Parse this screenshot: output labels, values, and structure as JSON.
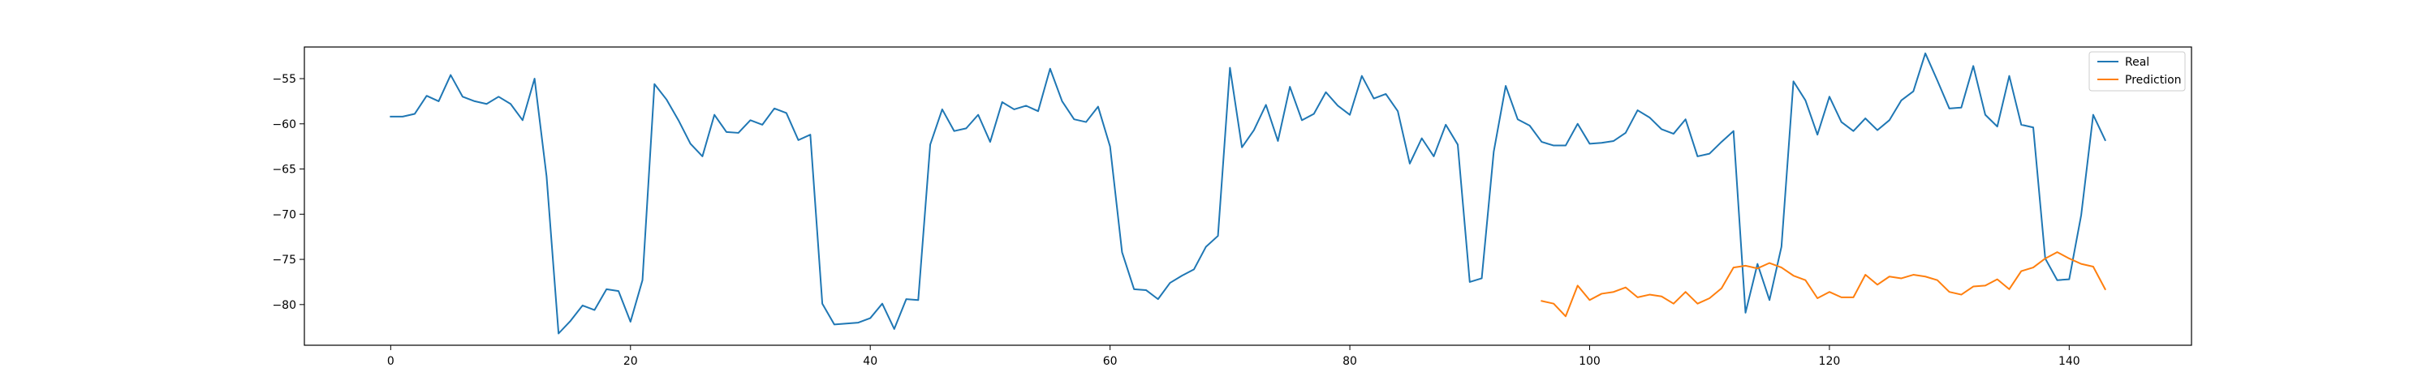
{
  "chart_data": {
    "type": "line",
    "title": "",
    "xlabel": "",
    "ylabel": "",
    "xlim": [
      -7.2,
      150.2
    ],
    "ylim": [
      -84.5,
      -51.5
    ],
    "xticks": [
      0,
      20,
      40,
      60,
      80,
      100,
      120,
      140
    ],
    "yticks": [
      -55,
      -60,
      -65,
      -70,
      -75,
      -80
    ],
    "grid": false,
    "legend_position": "top-right",
    "series": [
      {
        "name": "Real",
        "color": "#1f77b4",
        "x_start": 0,
        "values": [
          -59.2,
          -59.2,
          -58.9,
          -56.9,
          -57.5,
          -54.6,
          -57.0,
          -57.5,
          -57.8,
          -57.0,
          -57.8,
          -59.6,
          -55.0,
          -65.8,
          -83.2,
          -81.8,
          -80.1,
          -80.6,
          -78.3,
          -78.5,
          -81.9,
          -77.3,
          -55.6,
          -57.3,
          -59.6,
          -62.2,
          -63.6,
          -59.0,
          -60.9,
          -61.0,
          -59.6,
          -60.1,
          -58.3,
          -58.8,
          -61.8,
          -61.2,
          -79.9,
          -82.2,
          -82.1,
          -82.0,
          -81.5,
          -79.9,
          -82.7,
          -79.4,
          -79.5,
          -62.3,
          -58.4,
          -60.8,
          -60.5,
          -59.0,
          -62.0,
          -57.6,
          -58.4,
          -58.0,
          -58.6,
          -53.9,
          -57.5,
          -59.5,
          -59.8,
          -58.1,
          -62.5,
          -74.2,
          -78.3,
          -78.4,
          -79.4,
          -77.6,
          -76.8,
          -76.1,
          -73.6,
          -72.4,
          -53.8,
          -62.6,
          -60.7,
          -57.9,
          -61.9,
          -55.9,
          -59.6,
          -58.9,
          -56.5,
          -58.0,
          -59.0,
          -54.7,
          -57.2,
          -56.7,
          -58.6,
          -64.4,
          -61.6,
          -63.6,
          -60.1,
          -62.3,
          -77.5,
          -77.1,
          -63.1,
          -55.8,
          -59.5,
          -60.2,
          -62.0,
          -62.4,
          -62.4,
          -60.0,
          -62.2,
          -62.1,
          -61.9,
          -61.0,
          -58.5,
          -59.3,
          -60.6,
          -61.1,
          -59.5,
          -63.6,
          -63.3,
          -62.0,
          -60.8,
          -80.9,
          -75.5,
          -79.5,
          -73.6,
          -55.3,
          -57.4,
          -61.2,
          -57.0,
          -59.8,
          -60.8,
          -59.4,
          -60.7,
          -59.6,
          -57.4,
          -56.4,
          -52.2,
          -55.2,
          -58.3,
          -58.2,
          -53.6,
          -59.0,
          -60.3,
          -54.7,
          -60.1,
          -60.4,
          -74.9,
          -77.3,
          -77.2,
          -70.1,
          -59.0,
          -61.8
        ]
      },
      {
        "name": "Prediction",
        "color": "#ff7f0e",
        "x_start": 96,
        "values": [
          -79.6,
          -79.9,
          -81.3,
          -77.9,
          -79.5,
          -78.8,
          -78.6,
          -78.1,
          -79.2,
          -78.9,
          -79.1,
          -79.9,
          -78.6,
          -79.9,
          -79.3,
          -78.2,
          -75.9,
          -75.7,
          -76.0,
          -75.4,
          -75.9,
          -76.8,
          -77.3,
          -79.3,
          -78.6,
          -79.2,
          -79.2,
          -76.7,
          -77.8,
          -76.9,
          -77.1,
          -76.7,
          -76.9,
          -77.3,
          -78.6,
          -78.9,
          -78.0,
          -77.9,
          -77.2,
          -78.3,
          -76.3,
          -75.9,
          -74.9,
          -74.2,
          -74.9,
          -75.5,
          -75.8,
          -78.3
        ]
      }
    ]
  }
}
